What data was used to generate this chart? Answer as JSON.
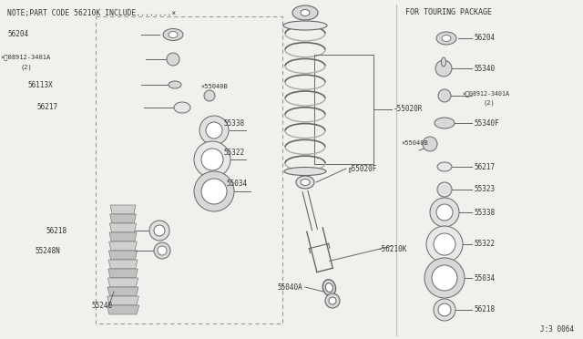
{
  "bg_color": "#f2f0ec",
  "note_text": "NOTE;PART CODE 56210K INCLUDE........×",
  "touring_text": "FOR TOURING PACKAGE",
  "diagram_id": "J:3 0064"
}
